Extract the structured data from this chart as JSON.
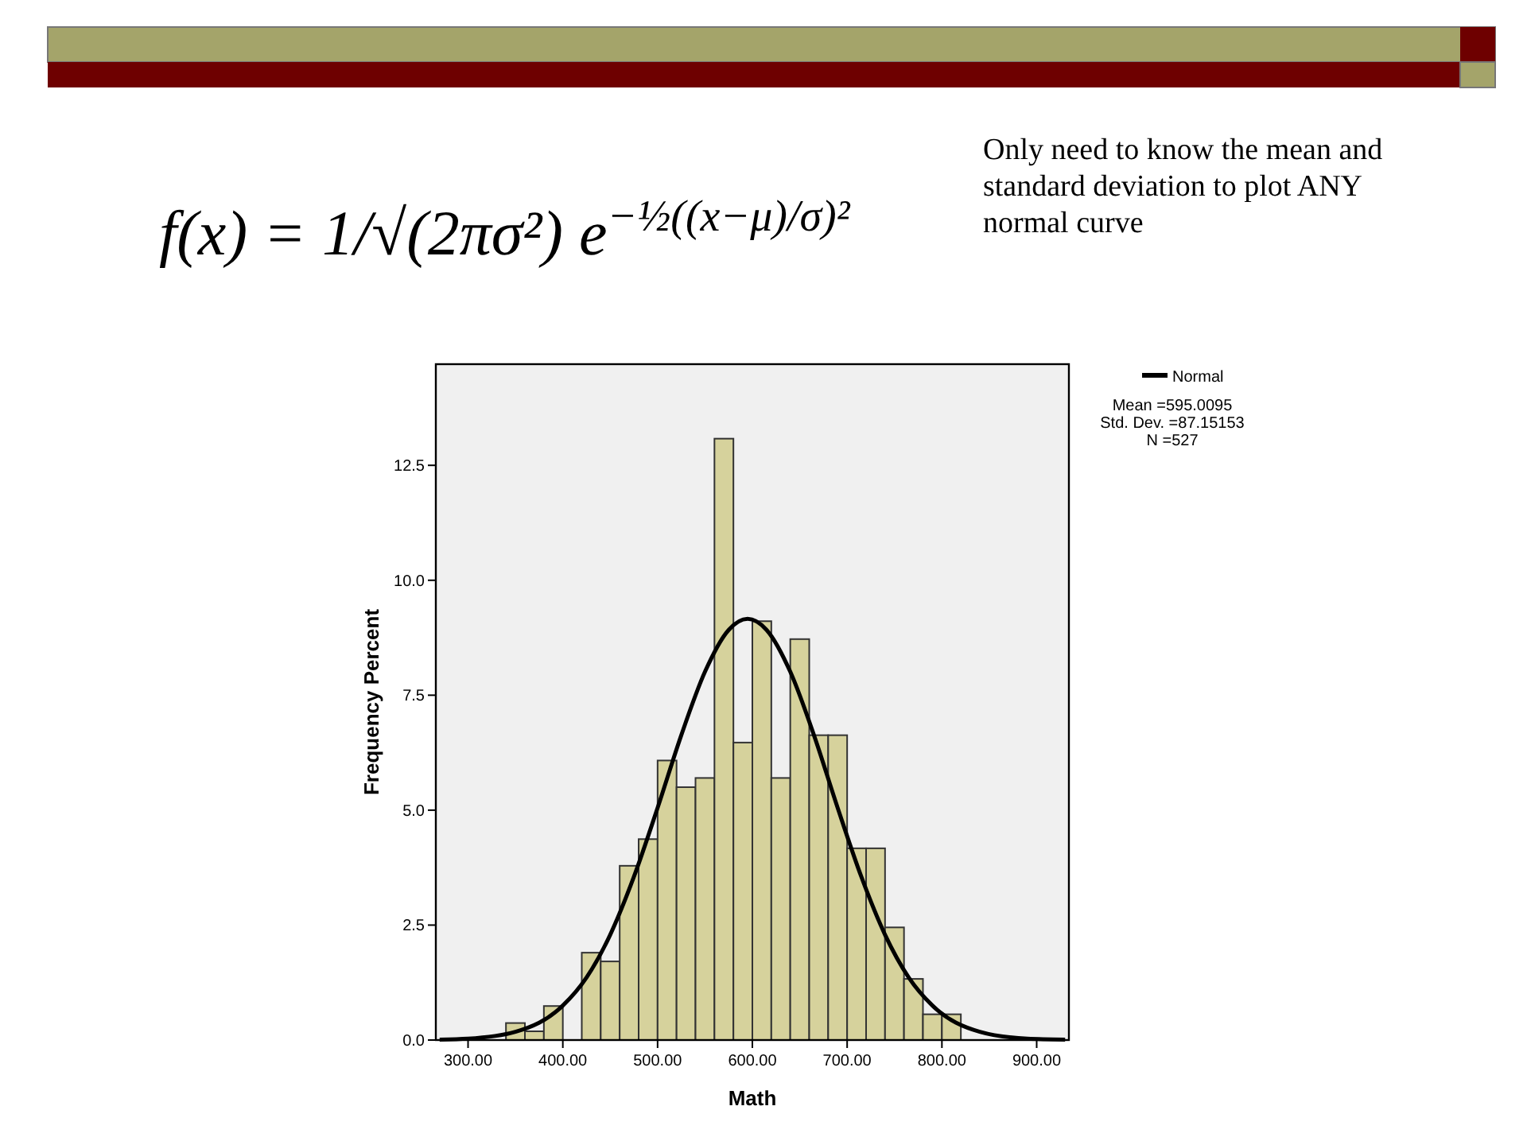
{
  "chart_data": {
    "type": "histogram",
    "xlabel": "Math",
    "ylabel": "Frequency Percent",
    "bins": [
      340,
      360,
      380,
      400,
      420,
      440,
      460,
      480,
      500,
      520,
      540,
      560,
      580,
      600,
      620,
      640,
      660,
      680,
      700,
      720,
      740,
      760,
      780,
      800,
      820
    ],
    "values": [
      0.37,
      0.19,
      0.74,
      0,
      1.9,
      1.71,
      3.79,
      4.37,
      6.08,
      5.5,
      5.7,
      13.08,
      6.47,
      9.11,
      5.7,
      8.72,
      6.63,
      6.63,
      4.17,
      4.17,
      2.45,
      1.33,
      0.56,
      0.56
    ],
    "color": "#d6d29c",
    "series": [
      {
        "name": "Normal",
        "type": "line",
        "color": "#000000",
        "x": [
          270,
          300,
          350,
          400,
          425,
          450,
          475,
          500,
          525,
          550,
          575,
          595,
          615,
          640,
          665,
          690,
          715,
          740,
          765,
          790,
          840,
          890,
          930
        ],
        "values": [
          0.01,
          0.03,
          0.18,
          0.75,
          1.36,
          2.29,
          3.55,
          5.05,
          6.63,
          8.01,
          8.92,
          9.16,
          8.92,
          8.01,
          6.63,
          5.05,
          3.55,
          2.29,
          1.36,
          0.75,
          0.18,
          0.03,
          0.01
        ]
      }
    ],
    "xlim": [
      266,
      934
    ],
    "ylim": [
      0,
      14.7
    ],
    "xticks": [
      {
        "value": 300,
        "label": "300.00"
      },
      {
        "value": 400,
        "label": "400.00"
      },
      {
        "value": 500,
        "label": "500.00"
      },
      {
        "value": 600,
        "label": "600.00"
      },
      {
        "value": 700,
        "label": "700.00"
      },
      {
        "value": 800,
        "label": "800.00"
      },
      {
        "value": 900,
        "label": "900.00"
      }
    ],
    "yticks": [
      {
        "value": 0,
        "label": "0.0"
      },
      {
        "value": 2.5,
        "label": "2.5"
      },
      {
        "value": 5,
        "label": "5.0"
      },
      {
        "value": 7.5,
        "label": "7.5"
      },
      {
        "value": 10,
        "label": "10.0"
      },
      {
        "value": 12.5,
        "label": "12.5"
      }
    ],
    "legend": "top right",
    "annotations": [
      "f(x) = 1/√(2πσ²) e$^{−½((x−μ)/σ)²}$",
      "Only need to know the mean and standard deviation to plot ANY normal curve",
      "Mean =595.0095",
      "Std. Dev. =87.15153",
      "N =527"
    ]
  }
}
